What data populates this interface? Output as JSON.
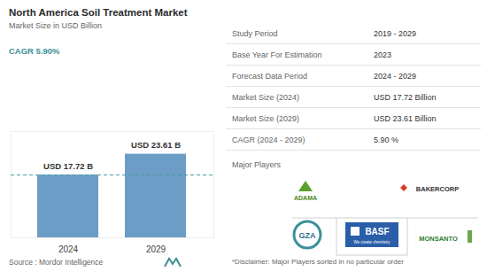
{
  "chart_data": {
    "type": "bar",
    "title": "North America Soil Treatment Market",
    "subtitle": "Market Size in USD Billion",
    "annotations": [
      "CAGR 5.90%"
    ],
    "source": "Source : Mordor Intelligence",
    "categories": [
      "2024",
      "2029"
    ],
    "values": [
      17.72,
      23.61
    ],
    "value_labels": [
      "USD 17.72 B",
      "USD 23.61 B"
    ],
    "color": "#6c9dc6",
    "ylim": [
      0,
      30
    ],
    "data_labels": true,
    "tick_labels": "x",
    "grid": false
  },
  "info_table": [
    [
      "Study Period",
      "2019 - 2029"
    ],
    [
      "Base Year For Estimation",
      "2023"
    ],
    [
      "Forecast Data Period",
      "2024 - 2029"
    ],
    [
      "Market Size (2024)",
      "USD 17.72 Billion"
    ],
    [
      "Market Size (2029)",
      "USD 23.61 Billion"
    ],
    [
      "CAGR (2024 - 2029)",
      "5.90 %"
    ]
  ],
  "major_players": {
    "title": "Major Players",
    "players": [
      {
        "name": "ADAMA"
      },
      {
        "name": "BAKERCORP"
      },
      {
        "name": "GZA"
      },
      {
        "name": "BASF",
        "tagline": "We create chemistry"
      },
      {
        "name": "MONSANTO"
      }
    ],
    "disclaimer": "*Disclaimer: Major Players sorted in no particular order"
  }
}
